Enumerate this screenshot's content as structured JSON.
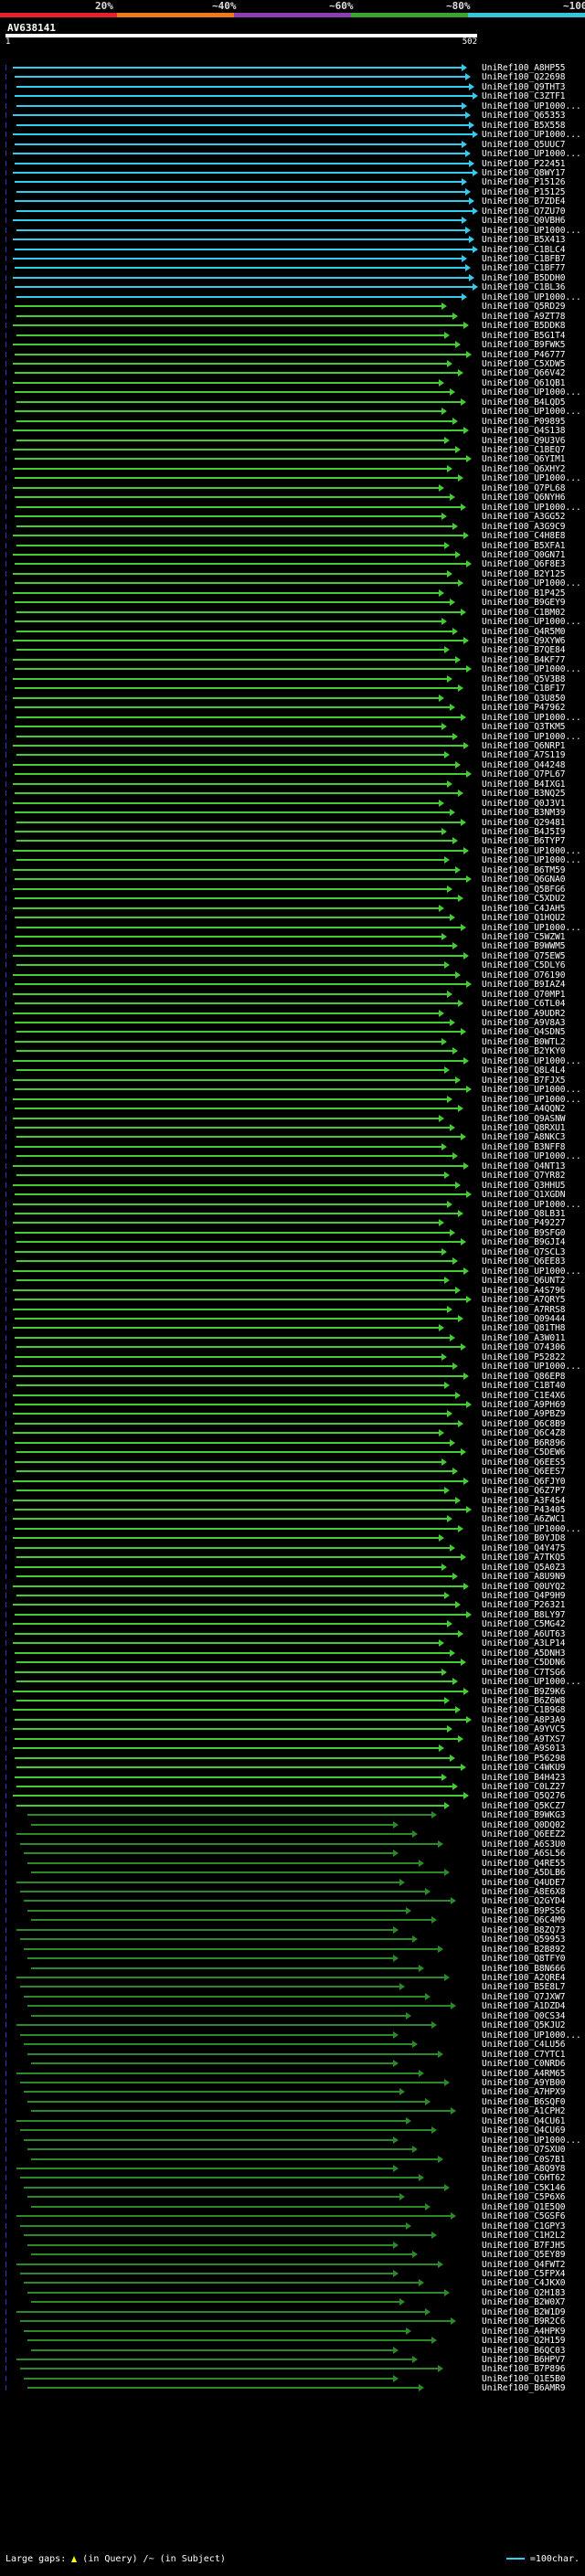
{
  "legend": {
    "labels": [
      "20%",
      "~40%",
      "~60%",
      "~80%",
      "~100%"
    ],
    "colors": [
      "#e8202a",
      "#f07a18",
      "#8b3fb2",
      "#3aa52f",
      "#34c6d8"
    ]
  },
  "query": {
    "name": "AV638141",
    "start": "1",
    "end": "502"
  },
  "hit_colors": {
    "full": "#33ccee",
    "high": "#44cc33",
    "mid": "#2a8a2a"
  },
  "hits": [
    {
      "label": "UniRef100_A8HP55",
      "kind": "full"
    },
    {
      "label": "UniRef100_Q22698",
      "kind": "full"
    },
    {
      "label": "UniRef100_Q9THT3",
      "kind": "full"
    },
    {
      "label": "UniRef100_C3ZTF1",
      "kind": "full"
    },
    {
      "label": "UniRef100_UP1000...",
      "kind": "full"
    },
    {
      "label": "UniRef100_Q65353",
      "kind": "full"
    },
    {
      "label": "UniRef100_B5X558",
      "kind": "full"
    },
    {
      "label": "UniRef100_UP1000...",
      "kind": "full"
    },
    {
      "label": "UniRef100_Q5UUC7",
      "kind": "full"
    },
    {
      "label": "UniRef100_UP1000...",
      "kind": "full"
    },
    {
      "label": "UniRef100_P22451",
      "kind": "full"
    },
    {
      "label": "UniRef100_Q8WY17",
      "kind": "full"
    },
    {
      "label": "UniRef100_P15126",
      "kind": "full"
    },
    {
      "label": "UniRef100_P15125",
      "kind": "full"
    },
    {
      "label": "UniRef100_B7ZDE4",
      "kind": "full"
    },
    {
      "label": "UniRef100_Q7ZU70",
      "kind": "full"
    },
    {
      "label": "UniRef100_Q0VBH6",
      "kind": "full"
    },
    {
      "label": "UniRef100_UP1000...",
      "kind": "full"
    },
    {
      "label": "UniRef100_B5X413",
      "kind": "full"
    },
    {
      "label": "UniRef100_C1BLC4",
      "kind": "full"
    },
    {
      "label": "UniRef100_C1BFB7",
      "kind": "full"
    },
    {
      "label": "UniRef100_C1BF77",
      "kind": "full"
    },
    {
      "label": "UniRef100_B5DDH0",
      "kind": "full"
    },
    {
      "label": "UniRef100_C1BL36",
      "kind": "full"
    },
    {
      "label": "UniRef100_UP1000...",
      "kind": "full"
    },
    {
      "label": "UniRef100_Q5RD29",
      "kind": "high"
    },
    {
      "label": "UniRef100_A9ZT78",
      "kind": "high"
    },
    {
      "label": "UniRef100_B5DDK8",
      "kind": "high"
    },
    {
      "label": "UniRef100_B5G1T4",
      "kind": "high"
    },
    {
      "label": "UniRef100_B9FWK5",
      "kind": "high"
    },
    {
      "label": "UniRef100_P46777",
      "kind": "high"
    },
    {
      "label": "UniRef100_C5XDW5",
      "kind": "high"
    },
    {
      "label": "UniRef100_Q66V42",
      "kind": "high"
    },
    {
      "label": "UniRef100_Q61QB1",
      "kind": "high"
    },
    {
      "label": "UniRef100_UP1000...",
      "kind": "high"
    },
    {
      "label": "UniRef100_B4LQD5",
      "kind": "high"
    },
    {
      "label": "UniRef100_UP1000...",
      "kind": "high"
    },
    {
      "label": "UniRef100_P09895",
      "kind": "high"
    },
    {
      "label": "UniRef100_Q4S138",
      "kind": "high"
    },
    {
      "label": "UniRef100_Q9U3V6",
      "kind": "high"
    },
    {
      "label": "UniRef100_C1BEQ7",
      "kind": "high"
    },
    {
      "label": "UniRef100_Q6YIM1",
      "kind": "high"
    },
    {
      "label": "UniRef100_Q6XHY2",
      "kind": "high"
    },
    {
      "label": "UniRef100_UP1000...",
      "kind": "high"
    },
    {
      "label": "UniRef100_Q7PL68",
      "kind": "high"
    },
    {
      "label": "UniRef100_Q6NYH6",
      "kind": "high"
    },
    {
      "label": "UniRef100_UP1000...",
      "kind": "high"
    },
    {
      "label": "UniRef100_A3GG52",
      "kind": "high"
    },
    {
      "label": "UniRef100_A3G9C9",
      "kind": "high"
    },
    {
      "label": "UniRef100_C4H8E8",
      "kind": "high"
    },
    {
      "label": "UniRef100_B5XFA1",
      "kind": "high"
    },
    {
      "label": "UniRef100_Q0GN71",
      "kind": "high"
    },
    {
      "label": "UniRef100_Q6F8E3",
      "kind": "high"
    },
    {
      "label": "UniRef100_B2Y125",
      "kind": "high"
    },
    {
      "label": "UniRef100_UP1000...",
      "kind": "high"
    },
    {
      "label": "UniRef100_B1P425",
      "kind": "high"
    },
    {
      "label": "UniRef100_B9GEY9",
      "kind": "high"
    },
    {
      "label": "UniRef100_C1BM02",
      "kind": "high"
    },
    {
      "label": "UniRef100_UP1000...",
      "kind": "high"
    },
    {
      "label": "UniRef100_Q4R5M0",
      "kind": "high"
    },
    {
      "label": "UniRef100_Q9XYW6",
      "kind": "high"
    },
    {
      "label": "UniRef100_B7QE84",
      "kind": "high"
    },
    {
      "label": "UniRef100_B4KF77",
      "kind": "high"
    },
    {
      "label": "UniRef100_UP1000...",
      "kind": "high"
    },
    {
      "label": "UniRef100_Q5V3B8",
      "kind": "high"
    },
    {
      "label": "UniRef100_C1BF17",
      "kind": "high"
    },
    {
      "label": "UniRef100_Q3U850",
      "kind": "high"
    },
    {
      "label": "UniRef100_P47962",
      "kind": "high"
    },
    {
      "label": "UniRef100_UP1000...",
      "kind": "high"
    },
    {
      "label": "UniRef100_Q3TKM5",
      "kind": "high"
    },
    {
      "label": "UniRef100_UP1000...",
      "kind": "high"
    },
    {
      "label": "UniRef100_Q6NRP1",
      "kind": "high"
    },
    {
      "label": "UniRef100_A7S119",
      "kind": "high"
    },
    {
      "label": "UniRef100_Q44248",
      "kind": "high"
    },
    {
      "label": "UniRef100_Q7PL67",
      "kind": "high"
    },
    {
      "label": "UniRef100_B4IXG1",
      "kind": "high"
    },
    {
      "label": "UniRef100_B3NQ25",
      "kind": "high"
    },
    {
      "label": "UniRef100_Q0J3V1",
      "kind": "high"
    },
    {
      "label": "UniRef100_B3NM39",
      "kind": "high"
    },
    {
      "label": "UniRef100_Q29481",
      "kind": "high"
    },
    {
      "label": "UniRef100_B4J5I9",
      "kind": "high"
    },
    {
      "label": "UniRef100_B6TYP7",
      "kind": "high"
    },
    {
      "label": "UniRef100_UP1000...",
      "kind": "high"
    },
    {
      "label": "UniRef100_UP1000...",
      "kind": "high"
    },
    {
      "label": "UniRef100_B6TM59",
      "kind": "high"
    },
    {
      "label": "UniRef100_Q6GNA0",
      "kind": "high"
    },
    {
      "label": "UniRef100_Q5BFG6",
      "kind": "high"
    },
    {
      "label": "UniRef100_C5XDU2",
      "kind": "high"
    },
    {
      "label": "UniRef100_C4JAH5",
      "kind": "high"
    },
    {
      "label": "UniRef100_Q1HQU2",
      "kind": "high"
    },
    {
      "label": "UniRef100_UP1000...",
      "kind": "high"
    },
    {
      "label": "UniRef100_C5WZW1",
      "kind": "high"
    },
    {
      "label": "UniRef100_B9WWM5",
      "kind": "high"
    },
    {
      "label": "UniRef100_Q75EW5",
      "kind": "high"
    },
    {
      "label": "UniRef100_C5DLY6",
      "kind": "high"
    },
    {
      "label": "UniRef100_O76190",
      "kind": "high"
    },
    {
      "label": "UniRef100_B9IAZ4",
      "kind": "high"
    },
    {
      "label": "UniRef100_Q70MP1",
      "kind": "high"
    },
    {
      "label": "UniRef100_C6TL04",
      "kind": "high"
    },
    {
      "label": "UniRef100_A9UDR2",
      "kind": "high"
    },
    {
      "label": "UniRef100_A9V8A3",
      "kind": "high"
    },
    {
      "label": "UniRef100_Q4SDN5",
      "kind": "high"
    },
    {
      "label": "UniRef100_B0WTL2",
      "kind": "high"
    },
    {
      "label": "UniRef100_B2YKY0",
      "kind": "high"
    },
    {
      "label": "UniRef100_UP1000...",
      "kind": "high"
    },
    {
      "label": "UniRef100_Q8L4L4",
      "kind": "high"
    },
    {
      "label": "UniRef100_B7FJX5",
      "kind": "high"
    },
    {
      "label": "UniRef100_UP1000...",
      "kind": "high"
    },
    {
      "label": "UniRef100_UP1000...",
      "kind": "high"
    },
    {
      "label": "UniRef100_A4QQN2",
      "kind": "high"
    },
    {
      "label": "UniRef100_Q9ASNW",
      "kind": "high"
    },
    {
      "label": "UniRef100_Q8RXU1",
      "kind": "high"
    },
    {
      "label": "UniRef100_A8NKC3",
      "kind": "high"
    },
    {
      "label": "UniRef100_B3NFF8",
      "kind": "high"
    },
    {
      "label": "UniRef100_UP1000...",
      "kind": "high"
    },
    {
      "label": "UniRef100_Q4NT13",
      "kind": "high"
    },
    {
      "label": "UniRef100_Q7YR82",
      "kind": "high"
    },
    {
      "label": "UniRef100_Q3HHU5",
      "kind": "high"
    },
    {
      "label": "UniRef100_Q1XGDN",
      "kind": "high"
    },
    {
      "label": "UniRef100_UP1000...",
      "kind": "high"
    },
    {
      "label": "UniRef100_Q8LB31",
      "kind": "high"
    },
    {
      "label": "UniRef100_P49227",
      "kind": "high"
    },
    {
      "label": "UniRef100_B9SFG0",
      "kind": "high"
    },
    {
      "label": "UniRef100_B9GJI4",
      "kind": "high"
    },
    {
      "label": "UniRef100_Q7SCL3",
      "kind": "high"
    },
    {
      "label": "UniRef100_Q6EE83",
      "kind": "high"
    },
    {
      "label": "UniRef100_UP1000...",
      "kind": "high"
    },
    {
      "label": "UniRef100_Q6UNT2",
      "kind": "high"
    },
    {
      "label": "UniRef100_A4S796",
      "kind": "high"
    },
    {
      "label": "UniRef100_A7QRY5",
      "kind": "high"
    },
    {
      "label": "UniRef100_A7RRS8",
      "kind": "high"
    },
    {
      "label": "UniRef100_Q09444",
      "kind": "high"
    },
    {
      "label": "UniRef100_Q81TH8",
      "kind": "high"
    },
    {
      "label": "UniRef100_A3W011",
      "kind": "high"
    },
    {
      "label": "UniRef100_O74306",
      "kind": "high"
    },
    {
      "label": "UniRef100_P52822",
      "kind": "high"
    },
    {
      "label": "UniRef100_UP1000...",
      "kind": "high"
    },
    {
      "label": "UniRef100_Q86EP8",
      "kind": "high"
    },
    {
      "label": "UniRef100_C1BT40",
      "kind": "high"
    },
    {
      "label": "UniRef100_C1E4X6",
      "kind": "high"
    },
    {
      "label": "UniRef100_A9PH69",
      "kind": "high"
    },
    {
      "label": "UniRef100_A9PBZ9",
      "kind": "high"
    },
    {
      "label": "UniRef100_Q6C8B9",
      "kind": "high"
    },
    {
      "label": "UniRef100_Q6C4Z8",
      "kind": "high"
    },
    {
      "label": "UniRef100_B6R896",
      "kind": "high"
    },
    {
      "label": "UniRef100_C5DEW6",
      "kind": "high"
    },
    {
      "label": "UniRef100_Q6EES5",
      "kind": "high"
    },
    {
      "label": "UniRef100_Q6EES7",
      "kind": "high"
    },
    {
      "label": "UniRef100_Q6FJY0",
      "kind": "high"
    },
    {
      "label": "UniRef100_Q6Z7P7",
      "kind": "high"
    },
    {
      "label": "UniRef100_A3F4S4",
      "kind": "high"
    },
    {
      "label": "UniRef100_P43405",
      "kind": "high"
    },
    {
      "label": "UniRef100_A6ZWC1",
      "kind": "high"
    },
    {
      "label": "UniRef100_UP1000...",
      "kind": "high"
    },
    {
      "label": "UniRef100_B0YJD8",
      "kind": "high"
    },
    {
      "label": "UniRef100_Q4Y475",
      "kind": "high"
    },
    {
      "label": "UniRef100_A7TKQ5",
      "kind": "high"
    },
    {
      "label": "UniRef100_Q5A0Z3",
      "kind": "high"
    },
    {
      "label": "UniRef100_A8U9N9",
      "kind": "high"
    },
    {
      "label": "UniRef100_Q0UYQ2",
      "kind": "high"
    },
    {
      "label": "UniRef100_Q4P9H9",
      "kind": "high"
    },
    {
      "label": "UniRef100_P26321",
      "kind": "high"
    },
    {
      "label": "UniRef100_B8LY97",
      "kind": "high"
    },
    {
      "label": "UniRef100_C5MG42",
      "kind": "high"
    },
    {
      "label": "UniRef100_A6UT63",
      "kind": "high"
    },
    {
      "label": "UniRef100_A3LP14",
      "kind": "high"
    },
    {
      "label": "UniRef100_A5DNH3",
      "kind": "high"
    },
    {
      "label": "UniRef100_C5DDN6",
      "kind": "high"
    },
    {
      "label": "UniRef100_C7TSG6",
      "kind": "high"
    },
    {
      "label": "UniRef100_UP1000...",
      "kind": "high"
    },
    {
      "label": "UniRef100_B9Z9K6",
      "kind": "high"
    },
    {
      "label": "UniRef100_B6Z6W8",
      "kind": "high"
    },
    {
      "label": "UniRef100_C1B9G8",
      "kind": "high"
    },
    {
      "label": "UniRef100_A8P3A9",
      "kind": "high"
    },
    {
      "label": "UniRef100_A9YVC5",
      "kind": "high"
    },
    {
      "label": "UniRef100_A9TXS7",
      "kind": "high"
    },
    {
      "label": "UniRef100_A9S013",
      "kind": "high"
    },
    {
      "label": "UniRef100_P56298",
      "kind": "high"
    },
    {
      "label": "UniRef100_C4WKU9",
      "kind": "high"
    },
    {
      "label": "UniRef100_B4H423",
      "kind": "high"
    },
    {
      "label": "UniRef100_C0LZ27",
      "kind": "high"
    },
    {
      "label": "UniRef100_Q5Q276",
      "kind": "high"
    },
    {
      "label": "UniRef100_Q5KCZ7",
      "kind": "high"
    },
    {
      "label": "UniRef100_B9WKG3",
      "kind": "mid"
    },
    {
      "label": "UniRef100_Q0DQ02",
      "kind": "mid"
    },
    {
      "label": "UniRef100_Q6EEZ2",
      "kind": "mid"
    },
    {
      "label": "UniRef100_A6S3U0",
      "kind": "mid"
    },
    {
      "label": "UniRef100_A6SL56",
      "kind": "mid"
    },
    {
      "label": "UniRef100_Q4RE55",
      "kind": "mid"
    },
    {
      "label": "UniRef100_A5DLB6",
      "kind": "mid"
    },
    {
      "label": "UniRef100_Q4UDE7",
      "kind": "mid"
    },
    {
      "label": "UniRef100_A8E6X8",
      "kind": "mid"
    },
    {
      "label": "UniRef100_Q2GYD4",
      "kind": "mid"
    },
    {
      "label": "UniRef100_B9PSS6",
      "kind": "mid"
    },
    {
      "label": "UniRef100_Q6C4M9",
      "kind": "mid"
    },
    {
      "label": "UniRef100_B8ZQ73",
      "kind": "mid"
    },
    {
      "label": "UniRef100_Q59953",
      "kind": "mid"
    },
    {
      "label": "UniRef100_B2B892",
      "kind": "mid"
    },
    {
      "label": "UniRef100_Q8TFY0",
      "kind": "mid"
    },
    {
      "label": "UniRef100_B8N666",
      "kind": "mid"
    },
    {
      "label": "UniRef100_A2QRE4",
      "kind": "mid"
    },
    {
      "label": "UniRef100_B5E8L7",
      "kind": "mid"
    },
    {
      "label": "UniRef100_Q7JXW7",
      "kind": "mid"
    },
    {
      "label": "UniRef100_A1DZD4",
      "kind": "mid"
    },
    {
      "label": "UniRef100_Q0CS34",
      "kind": "mid"
    },
    {
      "label": "UniRef100_Q5KJU2",
      "kind": "mid"
    },
    {
      "label": "UniRef100_UP1000...",
      "kind": "mid"
    },
    {
      "label": "UniRef100_C4LU56",
      "kind": "mid"
    },
    {
      "label": "UniRef100_C7YTC1",
      "kind": "mid"
    },
    {
      "label": "UniRef100_C0NRD6",
      "kind": "mid"
    },
    {
      "label": "UniRef100_A4RM65",
      "kind": "mid"
    },
    {
      "label": "UniRef100_A9YB00",
      "kind": "mid"
    },
    {
      "label": "UniRef100_A7HPX9",
      "kind": "mid"
    },
    {
      "label": "UniRef100_B6SQF0",
      "kind": "mid"
    },
    {
      "label": "UniRef100_A1CPH2",
      "kind": "mid"
    },
    {
      "label": "UniRef100_Q4CU61",
      "kind": "mid"
    },
    {
      "label": "UniRef100_Q4CU69",
      "kind": "mid"
    },
    {
      "label": "UniRef100_UP1000...",
      "kind": "mid"
    },
    {
      "label": "UniRef100_Q7SXU0",
      "kind": "mid"
    },
    {
      "label": "UniRef100_C0S7B1",
      "kind": "mid"
    },
    {
      "label": "UniRef100_A8Q9Y8",
      "kind": "mid"
    },
    {
      "label": "UniRef100_C6HT62",
      "kind": "mid"
    },
    {
      "label": "UniRef100_C5K146",
      "kind": "mid"
    },
    {
      "label": "UniRef100_C5P6X6",
      "kind": "mid"
    },
    {
      "label": "UniRef100_Q1E5Q0",
      "kind": "mid"
    },
    {
      "label": "UniRef100_C5GSF6",
      "kind": "mid"
    },
    {
      "label": "UniRef100_C1GPY3",
      "kind": "mid"
    },
    {
      "label": "UniRef100_C1H2L2",
      "kind": "mid"
    },
    {
      "label": "UniRef100_B7FJH5",
      "kind": "mid"
    },
    {
      "label": "UniRef100_Q5EY89",
      "kind": "mid"
    },
    {
      "label": "UniRef100_Q4FWT2",
      "kind": "mid"
    },
    {
      "label": "UniRef100_C5FPX4",
      "kind": "mid"
    },
    {
      "label": "UniRef100_C4JKX0",
      "kind": "mid"
    },
    {
      "label": "UniRef100_Q2H183",
      "kind": "mid"
    },
    {
      "label": "UniRef100_B2W0X7",
      "kind": "mid"
    },
    {
      "label": "UniRef100_B2W1D9",
      "kind": "mid"
    },
    {
      "label": "UniRef100_B9R2C6",
      "kind": "mid"
    },
    {
      "label": "UniRef100_A4HPK9",
      "kind": "mid"
    },
    {
      "label": "UniRef100_Q2H159",
      "kind": "mid"
    },
    {
      "label": "UniRef100_B6QC03",
      "kind": "mid"
    },
    {
      "label": "UniRef100_B6HPV7",
      "kind": "mid"
    },
    {
      "label": "UniRef100_B7P896",
      "kind": "mid"
    },
    {
      "label": "UniRef100_Q1E5B0",
      "kind": "mid"
    },
    {
      "label": "UniRef100_B6AMR9",
      "kind": "mid"
    }
  ],
  "footer": {
    "gaps_label": "Large gaps:",
    "in_query": "(in Query)",
    "in_subject": "/~ (in Subject)",
    "scale_label": "=100char."
  }
}
